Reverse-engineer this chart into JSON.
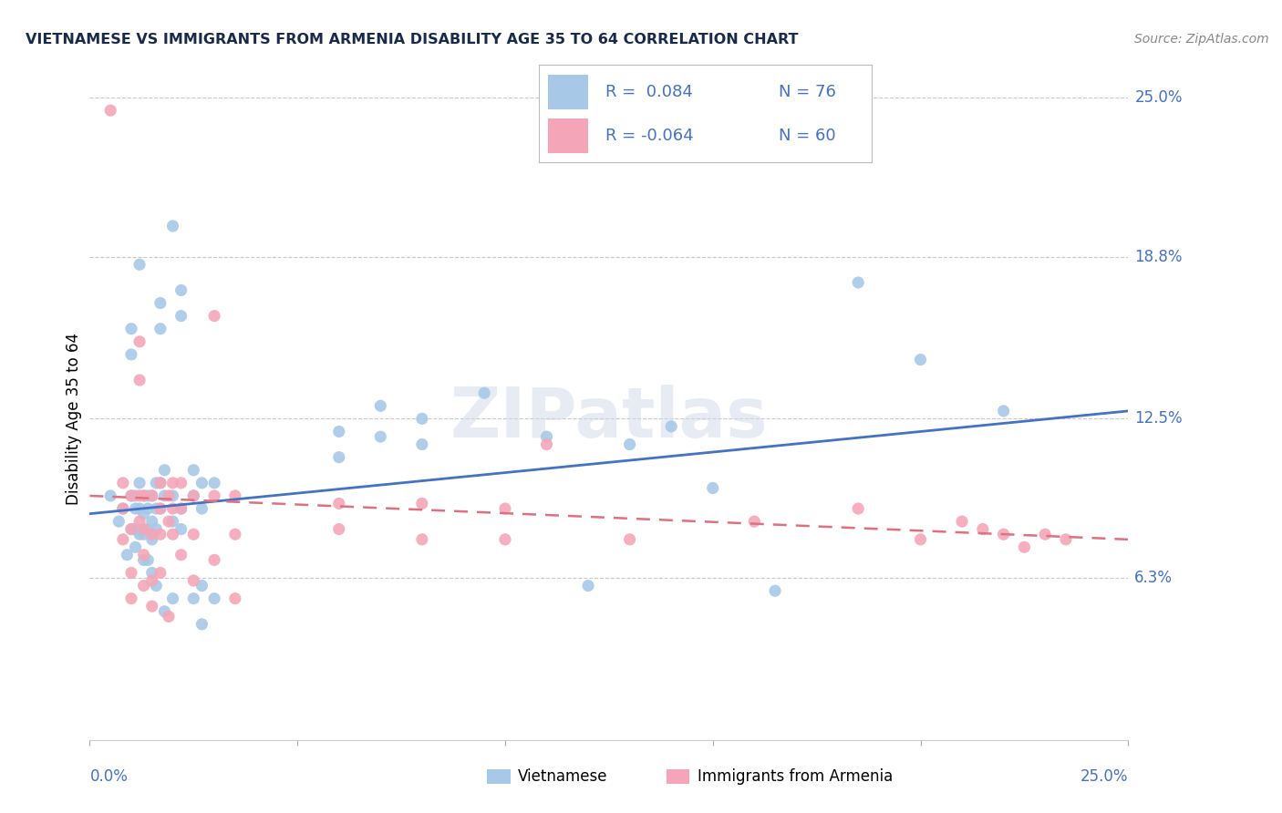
{
  "title": "VIETNAMESE VS IMMIGRANTS FROM ARMENIA DISABILITY AGE 35 TO 64 CORRELATION CHART",
  "source": "Source: ZipAtlas.com",
  "ylabel": "Disability Age 35 to 64",
  "xlim": [
    0.0,
    0.25
  ],
  "ylim": [
    0.0,
    0.25
  ],
  "ytick_labels": [
    "6.3%",
    "12.5%",
    "18.8%",
    "25.0%"
  ],
  "ytick_values": [
    0.063,
    0.125,
    0.188,
    0.25
  ],
  "blue_color": "#a8c8e8",
  "pink_color": "#f4a6b8",
  "line_blue": "#4472c4",
  "line_pink": "#e07080",
  "watermark": "ZIPatlas",
  "blue_scatter": [
    [
      0.005,
      0.095
    ],
    [
      0.007,
      0.085
    ],
    [
      0.008,
      0.09
    ],
    [
      0.009,
      0.072
    ],
    [
      0.01,
      0.16
    ],
    [
      0.01,
      0.15
    ],
    [
      0.01,
      0.095
    ],
    [
      0.01,
      0.082
    ],
    [
      0.011,
      0.095
    ],
    [
      0.011,
      0.09
    ],
    [
      0.011,
      0.082
    ],
    [
      0.011,
      0.075
    ],
    [
      0.012,
      0.185
    ],
    [
      0.012,
      0.1
    ],
    [
      0.012,
      0.09
    ],
    [
      0.012,
      0.08
    ],
    [
      0.013,
      0.095
    ],
    [
      0.013,
      0.088
    ],
    [
      0.013,
      0.08
    ],
    [
      0.013,
      0.07
    ],
    [
      0.014,
      0.095
    ],
    [
      0.014,
      0.09
    ],
    [
      0.014,
      0.082
    ],
    [
      0.014,
      0.07
    ],
    [
      0.015,
      0.095
    ],
    [
      0.015,
      0.085
    ],
    [
      0.015,
      0.078
    ],
    [
      0.015,
      0.065
    ],
    [
      0.016,
      0.1
    ],
    [
      0.016,
      0.09
    ],
    [
      0.016,
      0.082
    ],
    [
      0.016,
      0.06
    ],
    [
      0.017,
      0.17
    ],
    [
      0.017,
      0.16
    ],
    [
      0.017,
      0.1
    ],
    [
      0.017,
      0.09
    ],
    [
      0.018,
      0.105
    ],
    [
      0.018,
      0.095
    ],
    [
      0.018,
      0.05
    ],
    [
      0.02,
      0.2
    ],
    [
      0.02,
      0.095
    ],
    [
      0.02,
      0.085
    ],
    [
      0.02,
      0.055
    ],
    [
      0.022,
      0.175
    ],
    [
      0.022,
      0.165
    ],
    [
      0.022,
      0.09
    ],
    [
      0.022,
      0.082
    ],
    [
      0.025,
      0.105
    ],
    [
      0.025,
      0.095
    ],
    [
      0.025,
      0.055
    ],
    [
      0.027,
      0.1
    ],
    [
      0.027,
      0.09
    ],
    [
      0.027,
      0.06
    ],
    [
      0.027,
      0.045
    ],
    [
      0.03,
      0.1
    ],
    [
      0.03,
      0.055
    ],
    [
      0.06,
      0.12
    ],
    [
      0.06,
      0.11
    ],
    [
      0.07,
      0.13
    ],
    [
      0.07,
      0.118
    ],
    [
      0.08,
      0.125
    ],
    [
      0.08,
      0.115
    ],
    [
      0.095,
      0.135
    ],
    [
      0.11,
      0.118
    ],
    [
      0.12,
      0.06
    ],
    [
      0.13,
      0.115
    ],
    [
      0.14,
      0.122
    ],
    [
      0.15,
      0.098
    ],
    [
      0.165,
      0.058
    ],
    [
      0.185,
      0.178
    ],
    [
      0.2,
      0.148
    ],
    [
      0.22,
      0.128
    ]
  ],
  "pink_scatter": [
    [
      0.005,
      0.245
    ],
    [
      0.008,
      0.1
    ],
    [
      0.008,
      0.09
    ],
    [
      0.008,
      0.078
    ],
    [
      0.01,
      0.095
    ],
    [
      0.01,
      0.082
    ],
    [
      0.01,
      0.065
    ],
    [
      0.01,
      0.055
    ],
    [
      0.012,
      0.155
    ],
    [
      0.012,
      0.14
    ],
    [
      0.012,
      0.095
    ],
    [
      0.012,
      0.085
    ],
    [
      0.013,
      0.095
    ],
    [
      0.013,
      0.082
    ],
    [
      0.013,
      0.072
    ],
    [
      0.013,
      0.06
    ],
    [
      0.015,
      0.095
    ],
    [
      0.015,
      0.08
    ],
    [
      0.015,
      0.062
    ],
    [
      0.015,
      0.052
    ],
    [
      0.017,
      0.1
    ],
    [
      0.017,
      0.09
    ],
    [
      0.017,
      0.08
    ],
    [
      0.017,
      0.065
    ],
    [
      0.019,
      0.095
    ],
    [
      0.019,
      0.085
    ],
    [
      0.019,
      0.048
    ],
    [
      0.02,
      0.1
    ],
    [
      0.02,
      0.09
    ],
    [
      0.02,
      0.08
    ],
    [
      0.022,
      0.1
    ],
    [
      0.022,
      0.09
    ],
    [
      0.022,
      0.072
    ],
    [
      0.025,
      0.095
    ],
    [
      0.025,
      0.08
    ],
    [
      0.025,
      0.062
    ],
    [
      0.03,
      0.165
    ],
    [
      0.03,
      0.095
    ],
    [
      0.03,
      0.07
    ],
    [
      0.035,
      0.095
    ],
    [
      0.035,
      0.08
    ],
    [
      0.035,
      0.055
    ],
    [
      0.06,
      0.092
    ],
    [
      0.06,
      0.082
    ],
    [
      0.08,
      0.092
    ],
    [
      0.08,
      0.078
    ],
    [
      0.1,
      0.09
    ],
    [
      0.1,
      0.078
    ],
    [
      0.11,
      0.115
    ],
    [
      0.13,
      0.078
    ],
    [
      0.16,
      0.085
    ],
    [
      0.185,
      0.09
    ],
    [
      0.2,
      0.078
    ],
    [
      0.21,
      0.085
    ],
    [
      0.215,
      0.082
    ],
    [
      0.22,
      0.08
    ],
    [
      0.225,
      0.075
    ],
    [
      0.23,
      0.08
    ],
    [
      0.235,
      0.078
    ]
  ],
  "blue_line_x": [
    0.0,
    0.25
  ],
  "blue_line_y": [
    0.088,
    0.128
  ],
  "pink_line_x": [
    0.0,
    0.25
  ],
  "pink_line_y": [
    0.095,
    0.078
  ],
  "bottom_labels": [
    "Vietnamese",
    "Immigrants from Armenia"
  ],
  "background_color": "#ffffff",
  "grid_color": "#c8c8c8"
}
